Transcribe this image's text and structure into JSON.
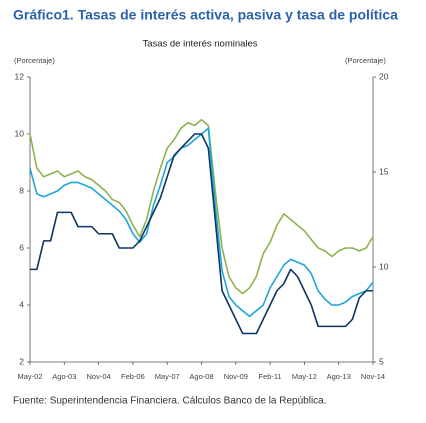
{
  "chart_data": {
    "type": "line",
    "title": "Gráfico1. Tasas de interés activa, pasiva y tasa de política",
    "subtitle": "Tasas de interés nominales",
    "y_label": "(Porcentaje)",
    "y2_label": "(Porcentaje)",
    "source": "Fuente: Superintendencia Financiera. Cálculos Banco de la República.",
    "categories": [
      "May-02",
      null,
      null,
      null,
      null,
      "Ago-03",
      null,
      null,
      null,
      null,
      "Nov-04",
      null,
      null,
      null,
      null,
      "Feb-06",
      null,
      null,
      null,
      null,
      "May-07",
      null,
      null,
      null,
      null,
      "Ago-08",
      null,
      null,
      null,
      null,
      "Nov-09",
      null,
      null,
      null,
      null,
      "Feb-11",
      null,
      null,
      null,
      null,
      "May-12",
      null,
      null,
      null,
      null,
      "Ago-13",
      null,
      null,
      null,
      null,
      "Nov-14"
    ],
    "ylim": [
      2,
      12
    ],
    "yticks": [
      2,
      4,
      6,
      8,
      10,
      12
    ],
    "y2lim": [
      5,
      20
    ],
    "y2ticks": [
      5,
      10,
      15,
      20
    ],
    "series": [
      {
        "color": "#8db34e",
        "axis": "y2",
        "values": [
          17,
          15.2,
          14.75,
          14.9,
          15.05,
          14.75,
          14.9,
          15.05,
          14.75,
          14.6,
          14.3,
          14.0,
          13.55,
          13.4,
          12.95,
          12.2,
          11.6,
          12.5,
          14.0,
          15.2,
          16.25,
          16.7,
          17.3,
          17.6,
          17.45,
          17.75,
          17.45,
          14.0,
          11.0,
          9.5,
          8.9,
          8.6,
          8.9,
          9.5,
          10.7,
          11.3,
          12.2,
          12.8,
          12.5,
          12.2,
          11.9,
          11.45,
          11.0,
          10.85,
          10.55,
          10.85,
          11.0,
          11.0,
          10.85,
          11.0,
          11.6
        ]
      },
      {
        "color": "#1ea6dc",
        "values": [
          8.8,
          7.9,
          7.8,
          7.9,
          8.0,
          8.2,
          8.3,
          8.3,
          8.2,
          8.1,
          7.9,
          7.7,
          7.5,
          7.3,
          7.0,
          6.5,
          6.2,
          6.5,
          7.5,
          8.2,
          9.0,
          9.2,
          9.5,
          9.6,
          9.8,
          10.0,
          10.2,
          7.5,
          5.2,
          4.3,
          4.0,
          3.8,
          3.6,
          3.8,
          4.0,
          4.6,
          5.0,
          5.4,
          5.6,
          5.5,
          5.4,
          5.1,
          4.5,
          4.2,
          4.0,
          4.0,
          4.1,
          4.3,
          4.4,
          4.5,
          4.8
        ]
      },
      {
        "color": "#0c3564",
        "values": [
          5.25,
          5.25,
          6.25,
          6.25,
          7.25,
          7.25,
          7.25,
          6.75,
          6.75,
          6.75,
          6.5,
          6.5,
          6.5,
          6.0,
          6.0,
          6.0,
          6.25,
          6.75,
          7.25,
          7.75,
          8.5,
          9.25,
          9.5,
          9.75,
          10,
          10,
          9.5,
          7,
          4.5,
          4.0,
          3.5,
          3.0,
          3.0,
          3.0,
          3.5,
          4.0,
          4.5,
          4.75,
          5.25,
          5.0,
          4.5,
          4.0,
          3.25,
          3.25,
          3.25,
          3.25,
          3.25,
          3.5,
          4.25,
          4.5,
          4.5
        ]
      }
    ]
  }
}
